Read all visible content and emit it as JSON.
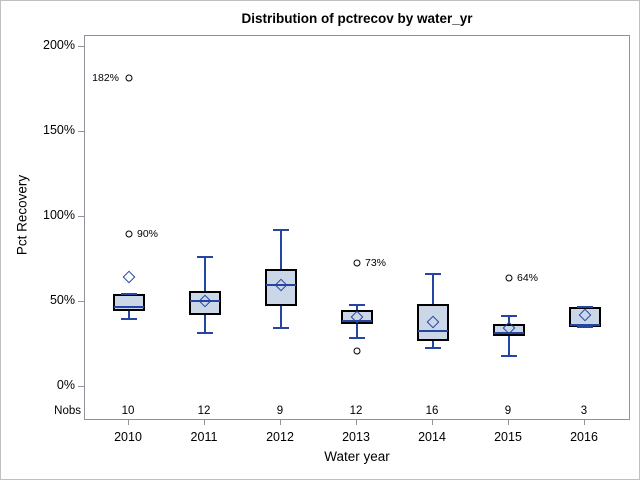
{
  "chart_data": {
    "type": "boxplot",
    "title": "Distribution of pctrecov by water_yr",
    "xlabel": "Water year",
    "ylabel": "Pct Recovery",
    "nobs_label": "Nobs",
    "ylim": [
      0,
      206
    ],
    "grid": false,
    "y_ticks": [
      {
        "value": 0,
        "label": "0%"
      },
      {
        "value": 50,
        "label": "50%"
      },
      {
        "value": 100,
        "label": "100%"
      },
      {
        "value": 150,
        "label": "150%"
      },
      {
        "value": 200,
        "label": "200%"
      }
    ],
    "categories": [
      "2010",
      "2011",
      "2012",
      "2013",
      "2014",
      "2015",
      "2016"
    ],
    "nobs": [
      10,
      12,
      9,
      12,
      16,
      9,
      3
    ],
    "boxes": [
      {
        "year": "2010",
        "low": 40,
        "q1": 44.5,
        "median": 47,
        "q3": 55,
        "high": 55,
        "mean": 64.5,
        "outliers": [
          {
            "value": 90,
            "label": "90%",
            "side": "right"
          },
          {
            "value": 182,
            "label": "182%",
            "side": "left"
          }
        ]
      },
      {
        "year": "2011",
        "low": 32,
        "q1": 42.5,
        "median": 50.5,
        "q3": 56.5,
        "high": 76.5,
        "mean": 50.5,
        "outliers": []
      },
      {
        "year": "2012",
        "low": 35,
        "q1": 47.5,
        "median": 60,
        "q3": 69.5,
        "high": 92.5,
        "mean": 60,
        "outliers": []
      },
      {
        "year": "2013",
        "low": 29,
        "q1": 37,
        "median": 39,
        "q3": 45.5,
        "high": 48.5,
        "mean": 41,
        "outliers": [
          {
            "value": 73,
            "label": "73%",
            "side": "right"
          },
          {
            "value": 21,
            "label": "",
            "side": "right"
          }
        ]
      },
      {
        "year": "2014",
        "low": 23,
        "q1": 27,
        "median": 33,
        "q3": 49,
        "high": 66.5,
        "mean": 38,
        "outliers": []
      },
      {
        "year": "2015",
        "low": 18,
        "q1": 30,
        "median": 31.5,
        "q3": 37,
        "high": 42,
        "mean": 34.5,
        "outliers": [
          {
            "value": 64,
            "label": "64%",
            "side": "right"
          }
        ]
      },
      {
        "year": "2016",
        "low": 35.5,
        "q1": 35.5,
        "median": 36.5,
        "q3": 47,
        "high": 47,
        "mean": 42.5,
        "outliers": []
      }
    ],
    "colors": {
      "box_fill": "#cbd6e6",
      "box_border": "#000000",
      "line_blue": "#2446a2",
      "frame_gray": "#8e9499",
      "outlier_stroke": "#000000",
      "text": "#000000"
    }
  }
}
